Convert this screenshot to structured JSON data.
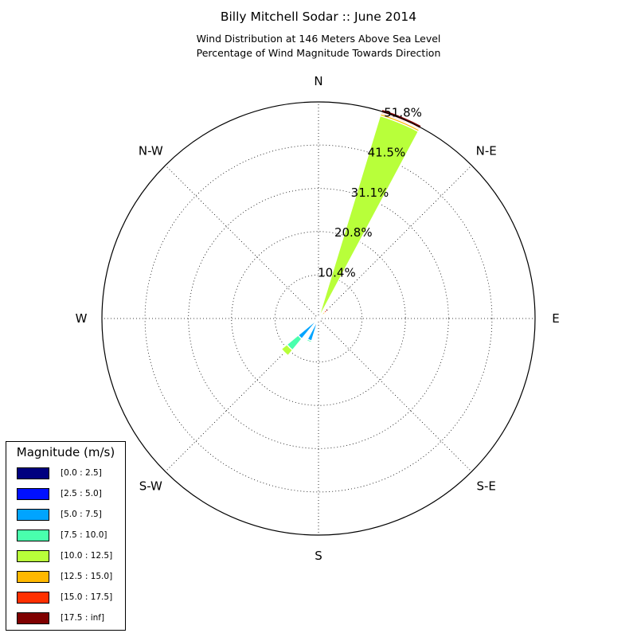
{
  "title": "Billy Mitchell Sodar :: June 2014",
  "subtitle_line1": "Wind Distribution at 146 Meters Above Sea Level",
  "subtitle_line2": "Percentage of Wind Magnitude Towards Direction",
  "chart_data": {
    "type": "polar-stacked-bar",
    "direction_labels": [
      "N",
      "N-E",
      "E",
      "S-E",
      "S",
      "S-W",
      "W",
      "N-W"
    ],
    "radial_ticks": [
      "10.4%",
      "20.8%",
      "31.1%",
      "41.5%",
      "51.8%"
    ],
    "radial_tick_values": [
      10.4,
      20.8,
      31.1,
      41.5,
      51.8
    ],
    "rmax": 51.8,
    "grid": true,
    "legend_position": "lower-left",
    "legend_title": "Magnitude (m/s)",
    "bins": [
      {
        "label": "[0.0 : 2.5]",
        "color": "#00007f"
      },
      {
        "label": "[2.5 : 5.0]",
        "color": "#0010ff"
      },
      {
        "label": "[5.0 : 7.5]",
        "color": "#00a4ff"
      },
      {
        "label": "[7.5 : 10.0]",
        "color": "#49ffad"
      },
      {
        "label": "[10.0 : 12.5]",
        "color": "#b8ff3a"
      },
      {
        "label": "[12.5 : 15.0]",
        "color": "#ffb800"
      },
      {
        "label": "[15.0 : 17.5]",
        "color": "#ff3000"
      },
      {
        "label": "[17.5 : inf]",
        "color": "#7f0000"
      }
    ],
    "sectors": [
      {
        "direction_deg": 22.5,
        "values": [
          0.0,
          0.0,
          0.3,
          0.8,
          49.6,
          0.5,
          0.3,
          0.8
        ]
      },
      {
        "direction_deg": 45,
        "values": [
          0.0,
          0.0,
          0.1,
          0.3,
          0.9,
          0.8,
          0.5,
          0.5
        ]
      },
      {
        "direction_deg": 67.5,
        "values": [
          0.0,
          0.0,
          0.3,
          1.3,
          0.3,
          0.0,
          0.0,
          0.0
        ]
      },
      {
        "direction_deg": 202.5,
        "values": [
          0.0,
          0.0,
          5.6,
          0.4,
          0.0,
          0.0,
          0.0,
          0.0
        ]
      },
      {
        "direction_deg": 225,
        "values": [
          0.0,
          0.0,
          6.3,
          3.5,
          1.7,
          0.0,
          0.0,
          0.0
        ]
      }
    ]
  }
}
